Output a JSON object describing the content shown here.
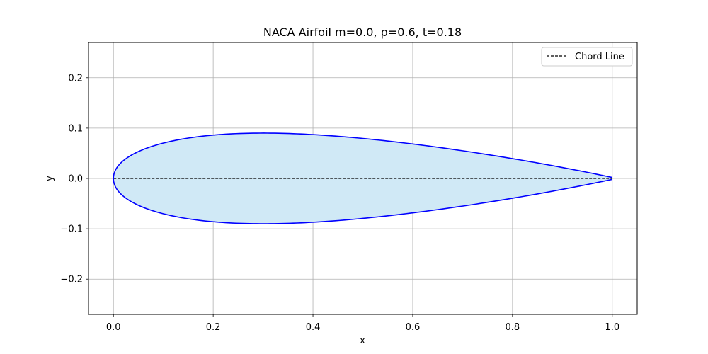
{
  "chart_data": {
    "type": "line",
    "title": "NACA Airfoil m=0.0, p=0.6, t=0.18",
    "xlabel": "x",
    "ylabel": "y",
    "xlim": [
      -0.05,
      1.05
    ],
    "ylim": [
      -0.27,
      0.27
    ],
    "xticks": [
      0.0,
      0.2,
      0.4,
      0.6,
      0.8,
      1.0
    ],
    "xtick_labels": [
      "0.0",
      "0.2",
      "0.4",
      "0.6",
      "0.8",
      "1.0"
    ],
    "yticks": [
      -0.2,
      -0.1,
      0.0,
      0.1,
      0.2
    ],
    "ytick_labels": [
      "−0.2",
      "−0.1",
      "0.0",
      "0.1",
      "0.2"
    ],
    "grid": true,
    "legend_position": "top-right",
    "airfoil": {
      "m": 0.0,
      "p": 0.6,
      "t": 0.18,
      "outline_color": "#0000ff",
      "fill_color": "#d0e9f6"
    },
    "series": [
      {
        "name": "Chord Line",
        "x": [
          0.0,
          1.0
        ],
        "y": [
          0.0,
          0.0
        ],
        "style": "dashed",
        "color": "#000000"
      }
    ],
    "legend": [
      {
        "label": "Chord Line",
        "style": "dashed",
        "color": "#000000"
      }
    ]
  }
}
